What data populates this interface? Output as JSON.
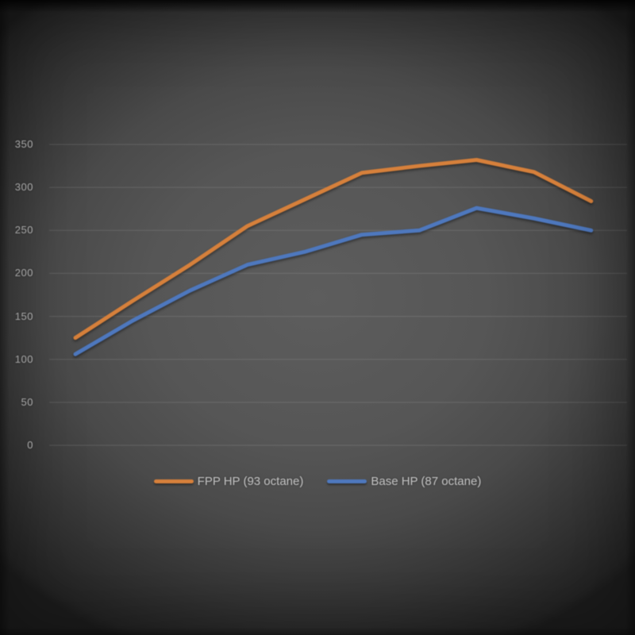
{
  "chart_data": {
    "type": "line",
    "title": "",
    "xlabel": "",
    "ylabel": "",
    "ylim": [
      0,
      350
    ],
    "y_ticks": [
      350,
      300,
      250,
      200,
      150,
      100,
      50,
      0
    ],
    "x_axis_labels_visible": false,
    "grid": true,
    "legend_position": "bottom",
    "background_style": "dark-vignette",
    "x": [
      1,
      2,
      3,
      4,
      5,
      6,
      7,
      8,
      9,
      10
    ],
    "series": [
      {
        "name": "FPP HP (93 octane)",
        "color": "#D6803B",
        "values": [
          125,
          168,
          210,
          255,
          286,
          317,
          325,
          332,
          318,
          284
        ]
      },
      {
        "name": "Base HP (87 octane)",
        "color": "#4E78BE",
        "values": [
          106,
          145,
          180,
          210,
          225,
          245,
          250,
          276,
          264,
          250
        ]
      }
    ]
  }
}
